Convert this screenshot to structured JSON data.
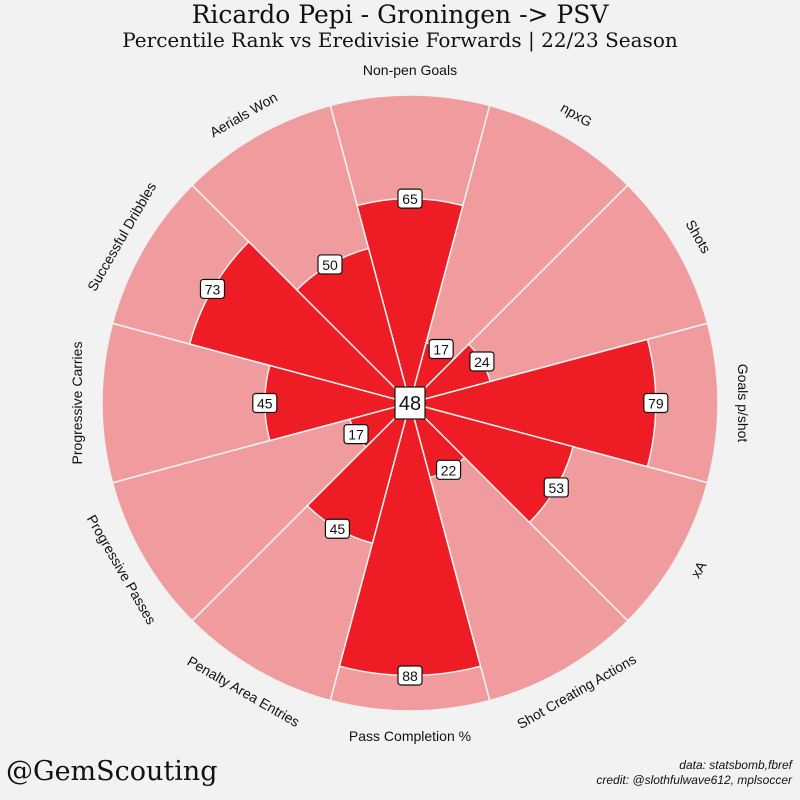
{
  "title": "Ricardo Pepi - Groningen -> PSV",
  "subtitle": "Percentile Rank vs Eredivisie Forwards | 22/23 Season",
  "handle": "@GemScouting",
  "credit_line1": "data: statsbomb,fbref",
  "credit_line2": "credit: @slothfulwave612, mplsoccer",
  "colors": {
    "background": "#f2f2f2",
    "slice_bg": "#f09c9e",
    "slice_value": "#ee1c24",
    "edge": "#f2f2f2"
  },
  "chart_data": {
    "type": "pizza",
    "center_value": "48",
    "range": [
      0,
      100
    ],
    "params": [
      {
        "label": "Non-pen Goals",
        "value": 65
      },
      {
        "label": "npxG",
        "value": 17
      },
      {
        "label": "Shots",
        "value": 24
      },
      {
        "label": "Goals p/shot",
        "value": 79
      },
      {
        "label": "xA",
        "value": 53
      },
      {
        "label": "Shot Creating Actions",
        "value": 22
      },
      {
        "label": "Pass Completion %",
        "value": 88
      },
      {
        "label": "Penalty Area Entries",
        "value": 45
      },
      {
        "label": "Progressive Passes",
        "value": 17
      },
      {
        "label": "Progressive Carries",
        "value": 45
      },
      {
        "label": "Successful Dribbles",
        "value": 73
      },
      {
        "label": "Aerials Won",
        "value": 50
      }
    ]
  }
}
